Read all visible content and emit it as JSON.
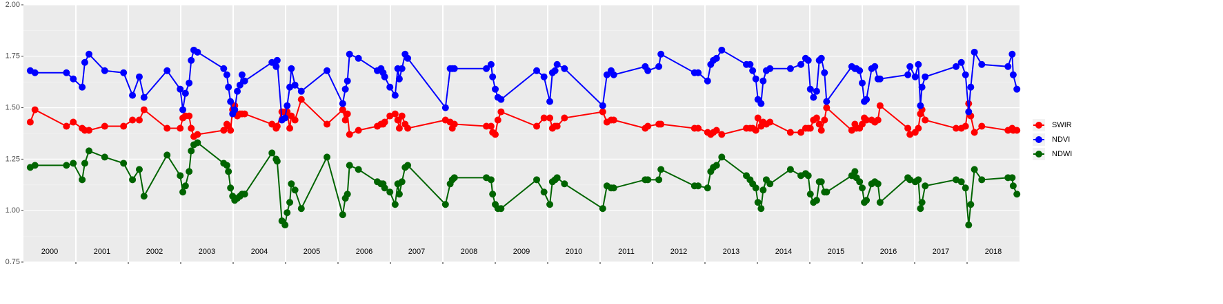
{
  "chart_data": {
    "type": "line",
    "x": [
      2000.13,
      2000.22,
      2000.82,
      2000.95,
      2001.12,
      2001.17,
      2001.25,
      2001.55,
      2001.91,
      2002.08,
      2002.21,
      2002.3,
      2002.74,
      2002.99,
      2003.04,
      2003.09,
      2003.16,
      2003.2,
      2003.25,
      2003.32,
      2003.82,
      2003.88,
      2003.91,
      2003.95,
      2003.99,
      2004.03,
      2004.08,
      2004.13,
      2004.17,
      2004.22,
      2004.74,
      2004.82,
      2004.84,
      2004.93,
      2004.99,
      2005.03,
      2005.08,
      2005.11,
      2005.18,
      2005.3,
      2005.79,
      2006.09,
      2006.14,
      2006.18,
      2006.22,
      2006.39,
      2006.75,
      2006.82,
      2006.86,
      2006.89,
      2006.99,
      2007.09,
      2007.14,
      2007.17,
      2007.22,
      2007.28,
      2007.33,
      2008.05,
      2008.14,
      2008.18,
      2008.22,
      2008.83,
      2008.92,
      2008.95,
      2009.0,
      2009.05,
      2009.11,
      2009.79,
      2009.93,
      2010.04,
      2010.09,
      2010.14,
      2010.18,
      2010.32,
      2011.05,
      2011.13,
      2011.21,
      2011.26,
      2011.86,
      2011.91,
      2012.12,
      2012.16,
      2012.8,
      2012.87,
      2013.05,
      2013.11,
      2013.16,
      2013.22,
      2013.32,
      2013.79,
      2013.86,
      2013.91,
      2013.97,
      2014.01,
      2014.07,
      2014.11,
      2014.17,
      2014.24,
      2014.63,
      2014.83,
      2014.92,
      2014.97,
      2015.01,
      2015.07,
      2015.13,
      2015.18,
      2015.22,
      2015.28,
      2015.32,
      2015.8,
      2015.86,
      2015.89,
      2015.95,
      2016.0,
      2016.04,
      2016.08,
      2016.18,
      2016.24,
      2016.3,
      2016.34,
      2016.87,
      2016.91,
      2017.01,
      2017.07,
      2017.11,
      2017.14,
      2017.2,
      2017.79,
      2017.89,
      2017.97,
      2018.03,
      2018.07,
      2018.14,
      2018.28,
      2018.78,
      2018.86,
      2018.88,
      2018.95
    ],
    "series": [
      {
        "name": "SWIR",
        "color": "#ff0000",
        "values": [
          1.43,
          1.49,
          1.41,
          1.43,
          1.4,
          1.39,
          1.39,
          1.41,
          1.41,
          1.44,
          1.44,
          1.49,
          1.4,
          1.4,
          1.45,
          1.46,
          1.46,
          1.4,
          1.36,
          1.37,
          1.39,
          1.42,
          1.41,
          1.39,
          1.49,
          1.51,
          1.46,
          1.47,
          1.47,
          1.47,
          1.42,
          1.4,
          1.41,
          1.48,
          1.48,
          1.48,
          1.4,
          1.46,
          1.44,
          1.54,
          1.42,
          1.49,
          1.44,
          1.47,
          1.37,
          1.39,
          1.41,
          1.42,
          1.42,
          1.43,
          1.46,
          1.47,
          1.44,
          1.4,
          1.46,
          1.42,
          1.4,
          1.44,
          1.43,
          1.4,
          1.42,
          1.41,
          1.41,
          1.38,
          1.37,
          1.44,
          1.48,
          1.41,
          1.45,
          1.45,
          1.4,
          1.41,
          1.41,
          1.45,
          1.48,
          1.43,
          1.44,
          1.44,
          1.4,
          1.41,
          1.42,
          1.42,
          1.4,
          1.4,
          1.38,
          1.37,
          1.38,
          1.39,
          1.37,
          1.4,
          1.4,
          1.4,
          1.39,
          1.45,
          1.41,
          1.43,
          1.42,
          1.43,
          1.38,
          1.38,
          1.4,
          1.4,
          1.4,
          1.44,
          1.45,
          1.42,
          1.39,
          1.44,
          1.5,
          1.39,
          1.42,
          1.4,
          1.4,
          1.42,
          1.45,
          1.44,
          1.44,
          1.43,
          1.44,
          1.51,
          1.4,
          1.37,
          1.38,
          1.4,
          1.47,
          1.49,
          1.44,
          1.4,
          1.4,
          1.41,
          1.52,
          1.46,
          1.38,
          1.41,
          1.39,
          1.4,
          1.39,
          1.39
        ]
      },
      {
        "name": "NDVI",
        "color": "#0000ff",
        "values": [
          1.68,
          1.67,
          1.67,
          1.64,
          1.6,
          1.72,
          1.76,
          1.68,
          1.67,
          1.56,
          1.65,
          1.55,
          1.68,
          1.59,
          1.49,
          1.57,
          1.62,
          1.73,
          1.78,
          1.77,
          1.69,
          1.66,
          1.6,
          1.53,
          1.47,
          1.49,
          1.58,
          1.61,
          1.66,
          1.63,
          1.72,
          1.7,
          1.73,
          1.44,
          1.45,
          1.51,
          1.6,
          1.69,
          1.61,
          1.58,
          1.68,
          1.52,
          1.59,
          1.63,
          1.76,
          1.74,
          1.68,
          1.69,
          1.67,
          1.65,
          1.6,
          1.56,
          1.69,
          1.64,
          1.69,
          1.76,
          1.74,
          1.5,
          1.69,
          1.69,
          1.69,
          1.69,
          1.71,
          1.65,
          1.59,
          1.55,
          1.54,
          1.68,
          1.65,
          1.53,
          1.67,
          1.68,
          1.71,
          1.69,
          1.51,
          1.66,
          1.68,
          1.66,
          1.7,
          1.68,
          1.7,
          1.76,
          1.67,
          1.67,
          1.63,
          1.71,
          1.73,
          1.74,
          1.78,
          1.71,
          1.71,
          1.68,
          1.64,
          1.54,
          1.52,
          1.63,
          1.68,
          1.69,
          1.69,
          1.71,
          1.74,
          1.73,
          1.59,
          1.55,
          1.58,
          1.73,
          1.74,
          1.67,
          1.53,
          1.7,
          1.69,
          1.69,
          1.68,
          1.62,
          1.53,
          1.54,
          1.69,
          1.7,
          1.64,
          1.64,
          1.66,
          1.7,
          1.65,
          1.71,
          1.51,
          1.6,
          1.65,
          1.7,
          1.72,
          1.66,
          1.48,
          1.6,
          1.77,
          1.71,
          1.7,
          1.76,
          1.66,
          1.59
        ]
      },
      {
        "name": "NDWI",
        "color": "#006400",
        "values": [
          1.21,
          1.22,
          1.22,
          1.23,
          1.15,
          1.23,
          1.29,
          1.26,
          1.23,
          1.15,
          1.2,
          1.07,
          1.27,
          1.17,
          1.09,
          1.12,
          1.19,
          1.29,
          1.32,
          1.33,
          1.23,
          1.22,
          1.19,
          1.11,
          1.07,
          1.05,
          1.06,
          1.07,
          1.08,
          1.08,
          1.28,
          1.25,
          1.24,
          0.95,
          0.93,
          0.99,
          1.04,
          1.13,
          1.1,
          1.01,
          1.26,
          0.98,
          1.06,
          1.08,
          1.22,
          1.2,
          1.14,
          1.13,
          1.13,
          1.11,
          1.09,
          1.03,
          1.13,
          1.08,
          1.14,
          1.21,
          1.22,
          1.03,
          1.13,
          1.15,
          1.16,
          1.16,
          1.15,
          1.08,
          1.03,
          1.01,
          1.01,
          1.15,
          1.09,
          1.03,
          1.14,
          1.15,
          1.16,
          1.13,
          1.01,
          1.12,
          1.11,
          1.11,
          1.15,
          1.15,
          1.15,
          1.2,
          1.12,
          1.12,
          1.11,
          1.19,
          1.21,
          1.22,
          1.26,
          1.17,
          1.15,
          1.13,
          1.11,
          1.04,
          1.01,
          1.1,
          1.15,
          1.13,
          1.2,
          1.17,
          1.18,
          1.17,
          1.08,
          1.04,
          1.05,
          1.14,
          1.14,
          1.09,
          1.09,
          1.17,
          1.19,
          1.16,
          1.14,
          1.11,
          1.04,
          1.05,
          1.13,
          1.14,
          1.13,
          1.04,
          1.16,
          1.15,
          1.14,
          1.15,
          1.01,
          1.04,
          1.12,
          1.15,
          1.14,
          1.11,
          0.93,
          1.03,
          1.2,
          1.15,
          1.16,
          1.16,
          1.12,
          1.08
        ]
      }
    ],
    "xlim": [
      2000,
      2019
    ],
    "xticks": [
      2001,
      2002,
      2003,
      2004,
      2005,
      2006,
      2007,
      2008,
      2009,
      2010,
      2011,
      2012,
      2013,
      2014,
      2015,
      2016,
      2017,
      2018
    ],
    "year_labels": [
      {
        "value": 2000.5,
        "label": "2000"
      },
      {
        "value": 2001.5,
        "label": "2001"
      },
      {
        "value": 2002.5,
        "label": "2002"
      },
      {
        "value": 2003.5,
        "label": "2003"
      },
      {
        "value": 2004.5,
        "label": "2004"
      },
      {
        "value": 2005.5,
        "label": "2005"
      },
      {
        "value": 2006.5,
        "label": "2006"
      },
      {
        "value": 2007.5,
        "label": "2007"
      },
      {
        "value": 2008.5,
        "label": "2008"
      },
      {
        "value": 2009.5,
        "label": "2009"
      },
      {
        "value": 2010.5,
        "label": "2010"
      },
      {
        "value": 2011.5,
        "label": "2011"
      },
      {
        "value": 2012.5,
        "label": "2012"
      },
      {
        "value": 2013.5,
        "label": "2013"
      },
      {
        "value": 2014.5,
        "label": "2014"
      },
      {
        "value": 2015.5,
        "label": "2015"
      },
      {
        "value": 2016.5,
        "label": "2016"
      },
      {
        "value": 2017.5,
        "label": "2017"
      },
      {
        "value": 2018.5,
        "label": "2018"
      }
    ],
    "ylim": [
      0.75,
      2.0
    ],
    "yticks": [
      {
        "value": 0.75,
        "label": "0.75"
      },
      {
        "value": 1.0,
        "label": "1.00"
      },
      {
        "value": 1.25,
        "label": "1.25"
      },
      {
        "value": 1.5,
        "label": "1.50"
      },
      {
        "value": 1.75,
        "label": "1.75"
      },
      {
        "value": 2.0,
        "label": "2.00"
      }
    ],
    "y_minor_ticks": [
      0.875,
      1.125,
      1.375,
      1.625,
      1.875
    ],
    "grid": true,
    "legend": "right"
  }
}
